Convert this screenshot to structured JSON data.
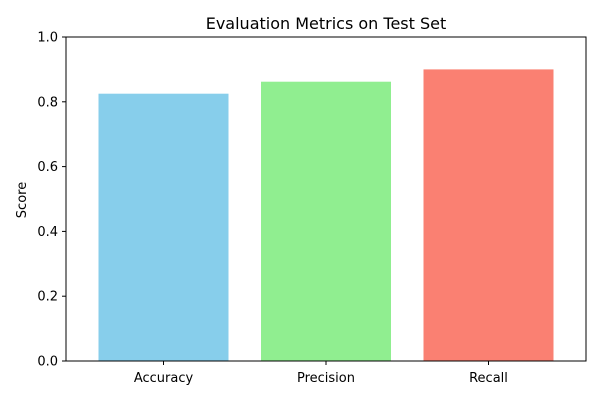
{
  "chart_data": {
    "type": "bar",
    "title": "Evaluation Metrics on Test Set",
    "xlabel": "",
    "ylabel": "Score",
    "categories": [
      "Accuracy",
      "Precision",
      "Recall"
    ],
    "values": [
      0.825,
      0.862,
      0.9
    ],
    "colors": [
      "#87ceeb",
      "#90ee90",
      "#fa8072"
    ],
    "ylim": [
      0,
      1.0
    ],
    "yticks": [
      "0.0",
      "0.2",
      "0.4",
      "0.6",
      "0.8",
      "1.0"
    ],
    "grid": false,
    "legend": "none"
  }
}
